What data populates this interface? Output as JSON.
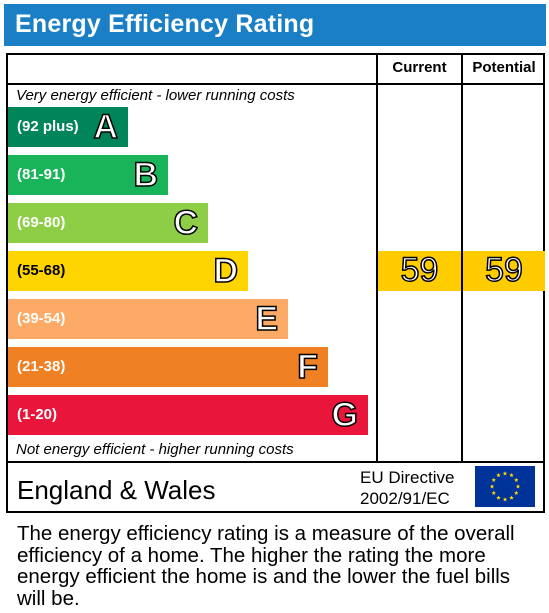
{
  "header": {
    "title": "Energy Efficiency Rating"
  },
  "columns": {
    "current": "Current",
    "potential": "Potential"
  },
  "notes": {
    "top": "Very energy efficient - lower running costs",
    "bottom": "Not energy efficient - higher running costs"
  },
  "bands": [
    {
      "range": "(92 plus)",
      "letter": "A",
      "color": "#00855a"
    },
    {
      "range": "(81-91)",
      "letter": "B",
      "color": "#19b459"
    },
    {
      "range": "(69-80)",
      "letter": "C",
      "color": "#8dce46"
    },
    {
      "range": "(55-68)",
      "letter": "D",
      "color": "#ffd500"
    },
    {
      "range": "(39-54)",
      "letter": "E",
      "color": "#fcaa65"
    },
    {
      "range": "(21-38)",
      "letter": "F",
      "color": "#ef8023"
    },
    {
      "range": "(1-20)",
      "letter": "G",
      "color": "#e9153b"
    }
  ],
  "ratings": {
    "current": "59",
    "potential": "59",
    "color": "#ffcc00"
  },
  "footer": {
    "region": "England & Wales",
    "directive_line1": "EU Directive",
    "directive_line2": "2002/91/EC",
    "flag_icon": "eu-flag-icon"
  },
  "description": "The energy efficiency rating is a measure of the overall efficiency of a home. The higher the rating the more energy efficient the home is and the lower the fuel bills will be."
}
